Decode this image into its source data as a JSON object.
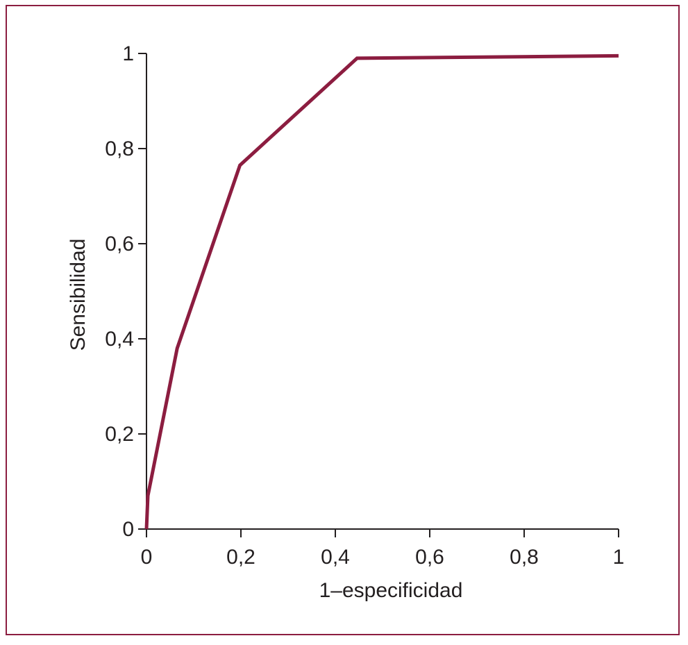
{
  "chart_data": {
    "type": "line",
    "title": "",
    "xlabel": "1–especificidad",
    "ylabel": "Sensibilidad",
    "xlim": [
      0,
      1
    ],
    "ylim": [
      0,
      1
    ],
    "grid": false,
    "x_ticks": [
      0,
      0.2,
      0.4,
      0.6,
      0.8,
      1
    ],
    "x_tick_labels": [
      "0",
      "0,2",
      "0,4",
      "0,6",
      "0,8",
      "1"
    ],
    "y_ticks": [
      0,
      0.2,
      0.4,
      0.6,
      0.8,
      1
    ],
    "y_tick_labels": [
      "0",
      "0,2",
      "0,4",
      "0,6",
      "0,8",
      "1"
    ],
    "series": [
      {
        "color": "#8c1d40",
        "x": [
          0,
          0.003,
          0.065,
          0.198,
          0.446,
          1.0
        ],
        "y": [
          0,
          0.07,
          0.38,
          0.765,
          0.99,
          0.995
        ]
      }
    ]
  }
}
